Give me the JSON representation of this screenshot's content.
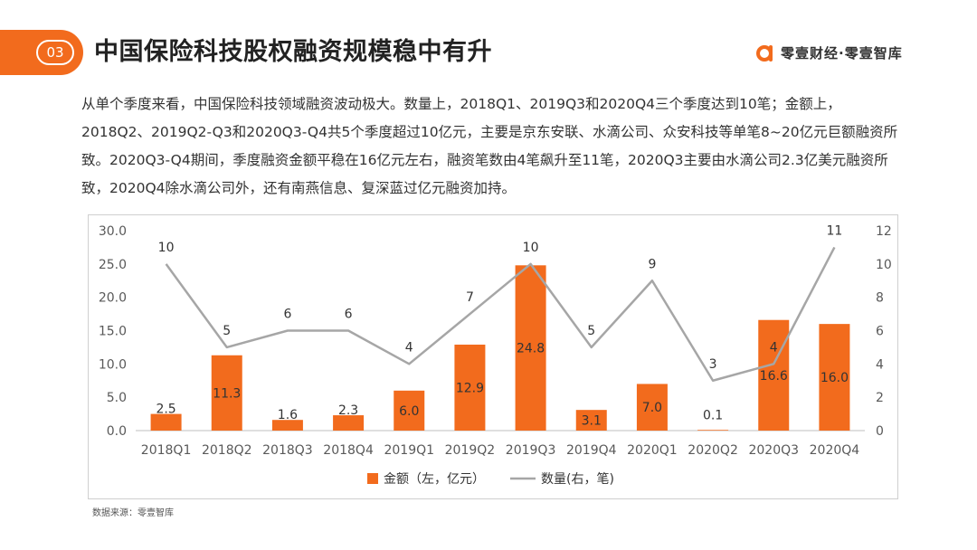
{
  "header": {
    "section_number": "03",
    "title": "中国保险科技股权融资规模稳中有升",
    "brand": "零壹财经·零壹智库",
    "logo_icon": "orange-a-icon",
    "accent_color": "#f26b1d"
  },
  "intro_text": "从单个季度来看，中国保险科技领域融资波动极大。数量上，2018Q1、2019Q3和2020Q4三个季度达到10笔；金额上，2018Q2、2019Q2-Q3和2020Q3-Q4共5个季度超过10亿元，主要是京东安联、水滴公司、众安科技等单笔8~20亿元巨额融资所致。2020Q3-Q4期间，季度融资金额平稳在16亿元左右，融资笔数由4笔飙升至11笔，2020Q3主要由水滴公司2.3亿美元融资所致，2020Q4除水滴公司外，还有南燕信息、复深蓝过亿元融资加持。",
  "source": "数据来源：零壹智库",
  "chart_data": {
    "type": "bar+line",
    "categories": [
      "2018Q1",
      "2018Q2",
      "2018Q3",
      "2018Q4",
      "2019Q1",
      "2019Q2",
      "2019Q3",
      "2019Q4",
      "2020Q1",
      "2020Q2",
      "2020Q3",
      "2020Q4"
    ],
    "series": [
      {
        "name": "金额（左，亿元）",
        "type": "bar",
        "axis": "left",
        "color": "#f26b1d",
        "values": [
          2.5,
          11.3,
          1.6,
          2.3,
          6.0,
          12.9,
          24.8,
          3.1,
          7.0,
          0.1,
          16.6,
          16.0
        ],
        "labels": [
          "2.5",
          "11.3",
          "1.6",
          "2.3",
          "6.0",
          "12.9",
          "24.8",
          "3.1",
          "7.0",
          "0.1",
          "16.6",
          "16.0"
        ]
      },
      {
        "name": "数量(右，笔)",
        "type": "line",
        "axis": "right",
        "color": "#a6a6a6",
        "values": [
          10,
          5,
          6,
          6,
          4,
          7,
          10,
          5,
          9,
          3,
          4,
          11
        ],
        "labels": [
          "10",
          "5",
          "6",
          "6",
          "4",
          "7",
          "10",
          "5",
          "9",
          "3",
          "4",
          "11"
        ]
      }
    ],
    "y_left": {
      "min": 0,
      "max": 30,
      "step": 5,
      "tick_labels": [
        "0.0",
        "5.0",
        "10.0",
        "15.0",
        "20.0",
        "25.0",
        "30.0"
      ]
    },
    "y_right": {
      "min": 0,
      "max": 12,
      "step": 2,
      "tick_labels": [
        "0",
        "2",
        "4",
        "6",
        "8",
        "10",
        "12"
      ]
    },
    "grid": false,
    "legend_position": "bottom"
  }
}
